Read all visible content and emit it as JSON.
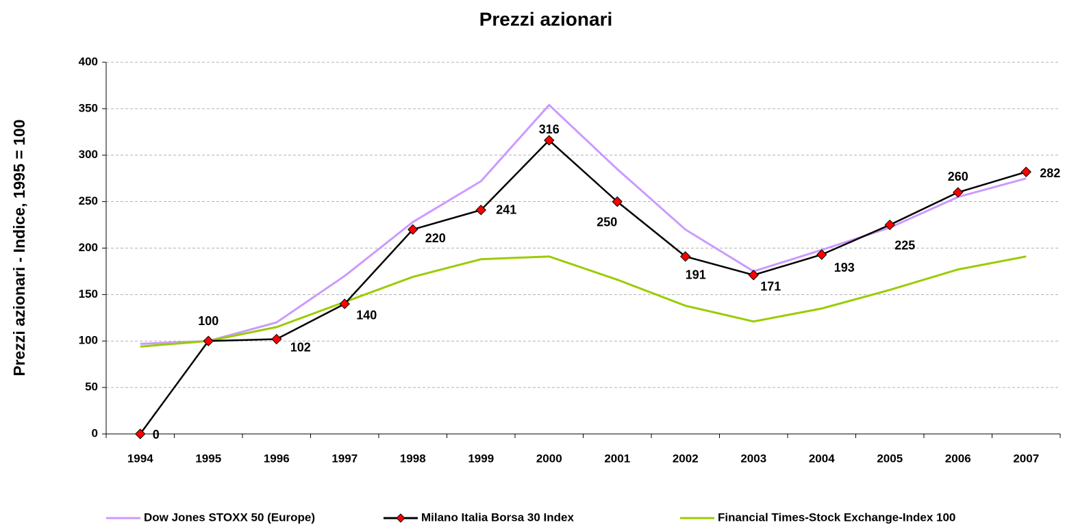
{
  "chart_data": {
    "type": "line",
    "title": "Prezzi azionari",
    "y_label": "Prezzi azionari - Indice, 1995 = 100",
    "categories": [
      "1994",
      "1995",
      "1996",
      "1997",
      "1998",
      "1999",
      "2000",
      "2001",
      "2002",
      "2003",
      "2004",
      "2005",
      "2006",
      "2007"
    ],
    "series": [
      {
        "name": "Dow Jones STOXX 50 (Europe)",
        "color": "#cc99ff",
        "values": [
          97,
          100,
          120,
          170,
          228,
          272,
          354,
          285,
          220,
          175,
          198,
          222,
          255,
          275
        ]
      },
      {
        "name": "Milano Italia Borsa 30 Index",
        "color": "#000000",
        "marker": "diamond",
        "marker_color": "#ff0000",
        "values": [
          0,
          100,
          102,
          140,
          220,
          241,
          316,
          250,
          191,
          171,
          193,
          225,
          260,
          282
        ]
      },
      {
        "name": "Financial Times-Stock Exchange-Index 100",
        "color": "#99cc00",
        "values": [
          94,
          100,
          115,
          142,
          169,
          188,
          191,
          166,
          138,
          121,
          135,
          155,
          177,
          191
        ]
      }
    ],
    "ylim": [
      0,
      400
    ],
    "yticks": [
      0,
      50,
      100,
      150,
      200,
      250,
      300,
      350,
      400
    ],
    "grid": true,
    "legend": "bottom"
  }
}
